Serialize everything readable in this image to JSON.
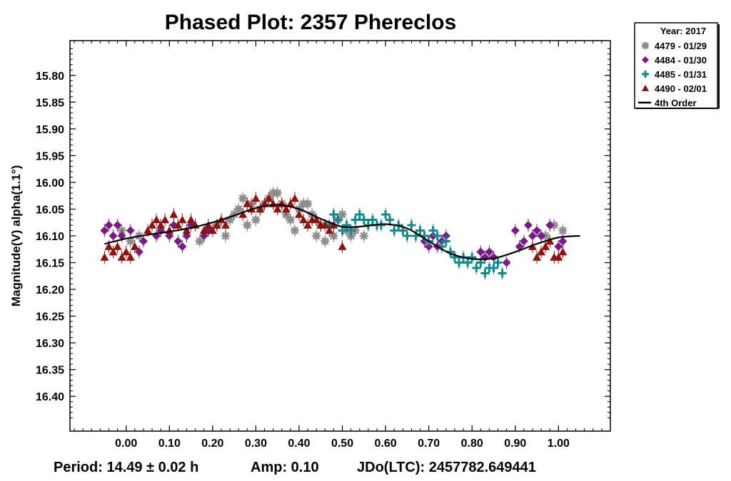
{
  "chart_data": {
    "type": "scatter",
    "title": "Phased Plot: 2357 Phereclos",
    "xlabel": "",
    "ylabel": "Magnitude(V) alpha(1.1°)",
    "x_ticks": [
      "0.00",
      "0.10",
      "0.20",
      "0.30",
      "0.40",
      "0.50",
      "0.60",
      "0.70",
      "0.80",
      "0.90",
      "1.00"
    ],
    "y_ticks": [
      "15.80",
      "15.85",
      "15.90",
      "15.95",
      "16.00",
      "16.05",
      "16.10",
      "16.15",
      "16.20",
      "16.25",
      "16.30",
      "16.35",
      "16.40"
    ],
    "xlim": [
      -0.13,
      1.12
    ],
    "ylim": [
      15.735,
      16.465
    ],
    "y_inverted": true,
    "grid": false,
    "legend": {
      "position": "top-right, outside plot",
      "title": "Year: 2017",
      "entries": [
        {
          "label": "4479 - 01/29",
          "marker": "asterisk",
          "color": "#8c8c8c"
        },
        {
          "label": "4484 - 01/30",
          "marker": "diamond",
          "color": "#7b1a86"
        },
        {
          "label": "4485 - 01/31",
          "marker": "plus",
          "color": "#13878a"
        },
        {
          "label": "4490 - 02/01",
          "marker": "triangle",
          "color": "#8b1410"
        },
        {
          "label": "4th Order",
          "marker": "line",
          "color": "#000000"
        }
      ]
    },
    "series": [
      {
        "name": "4479 - 01/29",
        "marker": "asterisk",
        "color": "#8c8c8c",
        "x": [
          -0.01,
          0.01,
          0.03,
          0.17,
          0.19,
          0.21,
          0.23,
          0.24,
          0.25,
          0.26,
          0.27,
          0.28,
          0.29,
          0.3,
          0.31,
          0.32,
          0.33,
          0.34,
          0.35,
          0.36,
          0.37,
          0.38,
          0.39,
          0.4,
          0.41,
          0.42,
          0.43,
          0.44,
          0.45,
          0.46,
          0.47,
          0.48,
          0.49,
          0.5,
          0.51,
          0.52,
          0.53,
          0.55,
          0.97,
          0.99,
          1.01
        ],
        "y": [
          16.09,
          16.11,
          16.1,
          16.11,
          16.09,
          16.08,
          16.1,
          16.07,
          16.06,
          16.05,
          16.03,
          16.08,
          16.04,
          16.07,
          16.05,
          16.04,
          16.03,
          16.02,
          16.02,
          16.04,
          16.06,
          16.07,
          16.09,
          16.05,
          16.04,
          16.04,
          16.06,
          16.1,
          16.08,
          16.11,
          16.08,
          16.1,
          16.07,
          16.06,
          16.09,
          16.1,
          16.09,
          16.1,
          16.1,
          16.08,
          16.09
        ]
      },
      {
        "name": "4484 - 01/30",
        "marker": "diamond",
        "color": "#7b1a86",
        "x": [
          -0.05,
          -0.04,
          -0.03,
          -0.02,
          -0.01,
          0.01,
          0.03,
          0.04,
          0.07,
          0.08,
          0.1,
          0.11,
          0.12,
          0.13,
          0.14,
          0.15,
          0.18,
          0.19,
          0.69,
          0.7,
          0.71,
          0.72,
          0.73,
          0.74,
          0.82,
          0.83,
          0.84,
          0.85,
          0.88,
          0.9,
          0.91,
          0.92,
          0.93,
          0.94,
          0.95,
          0.96,
          0.98,
          1.0,
          1.01
        ],
        "y": [
          16.09,
          16.08,
          16.1,
          16.08,
          16.1,
          16.09,
          16.13,
          16.11,
          16.1,
          16.09,
          16.1,
          16.08,
          16.11,
          16.12,
          16.1,
          16.08,
          16.1,
          16.09,
          16.11,
          16.12,
          16.1,
          16.12,
          16.11,
          16.1,
          16.13,
          16.14,
          16.13,
          16.14,
          16.15,
          16.09,
          16.12,
          16.11,
          16.08,
          16.1,
          16.09,
          16.1,
          16.08,
          16.12,
          16.11
        ]
      },
      {
        "name": "4485 - 01/31",
        "marker": "plus",
        "color": "#13878a",
        "x": [
          0.47,
          0.48,
          0.49,
          0.5,
          0.51,
          0.52,
          0.53,
          0.54,
          0.55,
          0.56,
          0.57,
          0.58,
          0.59,
          0.6,
          0.61,
          0.62,
          0.63,
          0.64,
          0.65,
          0.66,
          0.67,
          0.68,
          0.69,
          0.7,
          0.71,
          0.72,
          0.73,
          0.74,
          0.75,
          0.76,
          0.77,
          0.78,
          0.79,
          0.8,
          0.81,
          0.82,
          0.83,
          0.84,
          0.85,
          0.86,
          0.87
        ],
        "y": [
          16.08,
          16.06,
          16.07,
          16.09,
          16.08,
          16.09,
          16.07,
          16.06,
          16.07,
          16.08,
          16.07,
          16.08,
          16.08,
          16.06,
          16.07,
          16.09,
          16.08,
          16.09,
          16.1,
          16.08,
          16.1,
          16.09,
          16.1,
          16.11,
          16.09,
          16.1,
          16.12,
          16.11,
          16.13,
          16.14,
          16.15,
          16.14,
          16.15,
          16.14,
          16.16,
          16.15,
          16.17,
          16.16,
          16.16,
          16.15,
          16.17
        ]
      },
      {
        "name": "4490 - 02/01",
        "marker": "triangle",
        "color": "#8b1410",
        "x": [
          -0.05,
          -0.04,
          -0.03,
          -0.02,
          -0.01,
          0.0,
          0.01,
          0.02,
          0.05,
          0.06,
          0.07,
          0.08,
          0.09,
          0.1,
          0.11,
          0.12,
          0.13,
          0.14,
          0.15,
          0.16,
          0.18,
          0.19,
          0.2,
          0.21,
          0.22,
          0.23,
          0.27,
          0.28,
          0.29,
          0.3,
          0.31,
          0.32,
          0.33,
          0.34,
          0.35,
          0.36,
          0.37,
          0.38,
          0.39,
          0.4,
          0.41,
          0.42,
          0.43,
          0.44,
          0.45,
          0.46,
          0.47,
          0.48,
          0.5,
          0.94,
          0.95,
          0.96,
          0.97,
          0.98,
          0.99,
          1.0,
          1.01
        ],
        "y": [
          16.14,
          16.12,
          16.13,
          16.12,
          16.14,
          16.13,
          16.14,
          16.12,
          16.09,
          16.08,
          16.07,
          16.08,
          16.07,
          16.09,
          16.06,
          16.08,
          16.07,
          16.09,
          16.07,
          16.08,
          16.09,
          16.08,
          16.09,
          16.08,
          16.07,
          16.08,
          16.06,
          16.04,
          16.05,
          16.03,
          16.05,
          16.04,
          16.03,
          16.04,
          16.05,
          16.04,
          16.05,
          16.04,
          16.03,
          16.06,
          16.07,
          16.08,
          16.07,
          16.07,
          16.08,
          16.08,
          16.09,
          16.08,
          16.12,
          16.12,
          16.14,
          16.13,
          16.12,
          16.11,
          16.14,
          16.14,
          16.13
        ]
      }
    ],
    "fit": {
      "name": "4th Order",
      "color": "#000000",
      "x": [
        -0.05,
        0.0,
        0.05,
        0.1,
        0.15,
        0.2,
        0.25,
        0.3,
        0.35,
        0.4,
        0.45,
        0.5,
        0.55,
        0.6,
        0.65,
        0.7,
        0.75,
        0.8,
        0.85,
        0.9,
        0.95,
        1.0,
        1.05
      ],
      "y": [
        16.115,
        16.105,
        16.098,
        16.092,
        16.085,
        16.075,
        16.062,
        16.048,
        16.042,
        16.05,
        16.068,
        16.083,
        16.082,
        16.078,
        16.086,
        16.11,
        16.133,
        16.143,
        16.142,
        16.13,
        16.115,
        16.103,
        16.1
      ]
    }
  },
  "footer": {
    "period": "Period: 14.49 ± 0.02 h",
    "amp": "Amp: 0.10",
    "jd": "JDo(LTC): 2457782.649441"
  }
}
